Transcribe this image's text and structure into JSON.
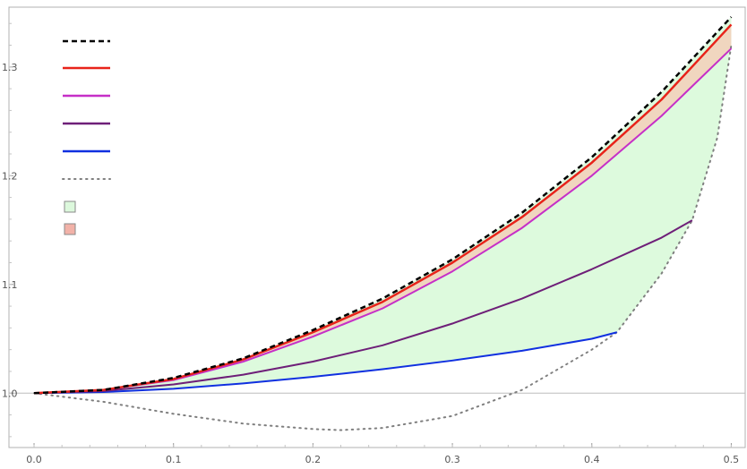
{
  "chart_data": {
    "type": "line",
    "title": "",
    "xlabel": "",
    "ylabel": "",
    "xlim": [
      -0.018,
      0.51
    ],
    "ylim": [
      0.95,
      1.355
    ],
    "grid": false,
    "x_ticks": [
      "0.0",
      "0.1",
      "0.2",
      "0.3",
      "0.4",
      "0.5"
    ],
    "y_ticks": [
      "1.0",
      "1.1",
      "1.2",
      "1.3"
    ],
    "baseline_y": 1.0,
    "legend": {
      "placement": "top-left",
      "entries": [
        {
          "style": "dashed-line",
          "color": "#000000"
        },
        {
          "style": "line",
          "color": "#e8231a"
        },
        {
          "style": "line",
          "color": "#c62fc7"
        },
        {
          "style": "line",
          "color": "#6e1f78"
        },
        {
          "style": "line",
          "color": "#1030e0"
        },
        {
          "style": "dotted-line",
          "color": "#7f7f7f"
        },
        {
          "style": "swatch",
          "color": "#dcf8dc"
        },
        {
          "style": "swatch",
          "color": "#f2b2a8"
        }
      ]
    },
    "regions": [
      {
        "fill": "#ddfadd",
        "between": [
          "blue",
          "dotted",
          "black"
        ]
      },
      {
        "fill": "#f0d6bf",
        "between": [
          "red",
          "magenta"
        ]
      }
    ],
    "series": [
      {
        "id": "black",
        "color": "#000000",
        "dash": "6,4",
        "width": 2.5,
        "x": [
          0,
          0.05,
          0.1,
          0.15,
          0.2,
          0.25,
          0.3,
          0.35,
          0.4,
          0.45,
          0.5
        ],
        "y": [
          1.0,
          1.003,
          1.014,
          1.032,
          1.058,
          1.087,
          1.123,
          1.166,
          1.217,
          1.277,
          1.346
        ]
      },
      {
        "id": "red",
        "color": "#e8231a",
        "dash": "",
        "width": 2.5,
        "x": [
          0,
          0.05,
          0.1,
          0.15,
          0.2,
          0.25,
          0.3,
          0.35,
          0.4,
          0.45,
          0.5
        ],
        "y": [
          1.0,
          1.003,
          1.013,
          1.031,
          1.056,
          1.084,
          1.12,
          1.162,
          1.212,
          1.27,
          1.339
        ]
      },
      {
        "id": "magenta",
        "color": "#c62fc7",
        "dash": "",
        "width": 2,
        "x": [
          0,
          0.05,
          0.1,
          0.15,
          0.2,
          0.25,
          0.3,
          0.35,
          0.4,
          0.45,
          0.5
        ],
        "y": [
          1.0,
          1.003,
          1.012,
          1.029,
          1.052,
          1.078,
          1.112,
          1.152,
          1.2,
          1.255,
          1.317
        ]
      },
      {
        "id": "purple",
        "color": "#6e1f78",
        "dash": "",
        "width": 2,
        "x": [
          0,
          0.05,
          0.1,
          0.15,
          0.2,
          0.25,
          0.3,
          0.35,
          0.4,
          0.45,
          0.472
        ],
        "y": [
          1.0,
          1.002,
          1.008,
          1.017,
          1.029,
          1.044,
          1.064,
          1.087,
          1.114,
          1.143,
          1.159
        ]
      },
      {
        "id": "blue",
        "color": "#1030e0",
        "dash": "",
        "width": 2,
        "x": [
          0,
          0.05,
          0.1,
          0.15,
          0.2,
          0.25,
          0.3,
          0.35,
          0.4,
          0.418
        ],
        "y": [
          1.0,
          1.001,
          1.004,
          1.009,
          1.015,
          1.022,
          1.03,
          1.039,
          1.05,
          1.056
        ]
      },
      {
        "id": "dotted",
        "color": "#7f7f7f",
        "dash": "1.5,5",
        "width": 2,
        "x": [
          0,
          0.05,
          0.1,
          0.15,
          0.2,
          0.22,
          0.25,
          0.3,
          0.35,
          0.4,
          0.418,
          0.45,
          0.472,
          0.49,
          0.5
        ],
        "y": [
          1.0,
          0.992,
          0.981,
          0.972,
          0.967,
          0.966,
          0.968,
          0.979,
          1.003,
          1.04,
          1.056,
          1.11,
          1.159,
          1.235,
          1.32
        ]
      }
    ]
  }
}
